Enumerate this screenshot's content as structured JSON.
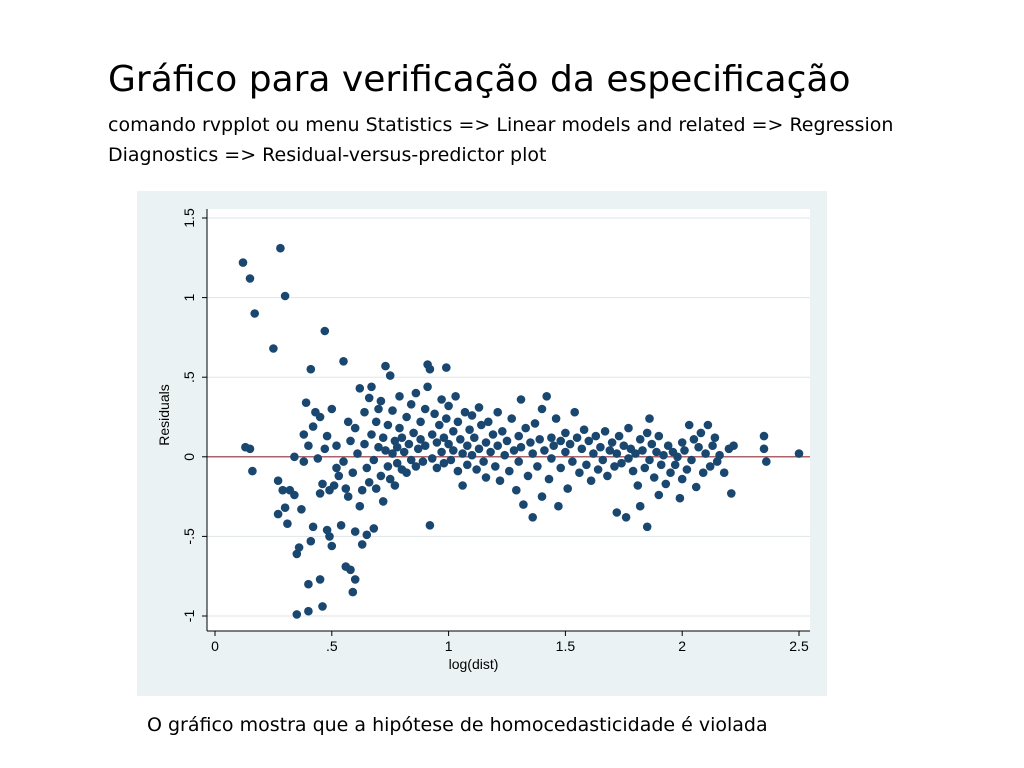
{
  "slide": {
    "title": "Gráfico para verificação da especificação",
    "subtitle_line1": "comando  rvpplot  ou menu Statistics =>  Linear models and related =>  Regression",
    "subtitle_line2": "Diagnostics => Residual-versus-predictor plot",
    "caption": "O gráfico mostra que a hipótese de homocedasticidade é violada"
  },
  "colors": {
    "plot_region_bg": "#eaf2f3",
    "marker": "#1a476f",
    "reference_line": "#90353b",
    "grid": "#dfe6e8"
  },
  "chart_data": {
    "type": "scatter",
    "xlabel": "log(dist)",
    "ylabel": "Residuals",
    "xlim": [
      0,
      2.5
    ],
    "ylim": [
      -1,
      1.5
    ],
    "xticks": [
      0,
      0.5,
      1,
      1.5,
      2,
      2.5
    ],
    "xtick_labels": [
      "0",
      ".5",
      "1",
      "1.5",
      "2",
      "2.5"
    ],
    "yticks": [
      -1,
      -0.5,
      0,
      0.5,
      1,
      1.5
    ],
    "ytick_labels": [
      "-1",
      "-.5",
      "0",
      ".5",
      "1",
      "1.5"
    ],
    "grid": true,
    "reference_line_y": 0,
    "points": [
      [
        0.12,
        1.22
      ],
      [
        0.15,
        1.12
      ],
      [
        0.17,
        0.9
      ],
      [
        0.25,
        0.68
      ],
      [
        0.28,
        1.31
      ],
      [
        0.3,
        1.01
      ],
      [
        0.13,
        0.06
      ],
      [
        0.15,
        0.05
      ],
      [
        0.16,
        -0.09
      ],
      [
        0.27,
        -0.15
      ],
      [
        0.27,
        -0.36
      ],
      [
        0.29,
        -0.21
      ],
      [
        0.3,
        -0.32
      ],
      [
        0.31,
        -0.42
      ],
      [
        0.32,
        -0.21
      ],
      [
        0.34,
        -0.24
      ],
      [
        0.34,
        0.0
      ],
      [
        0.35,
        -0.61
      ],
      [
        0.36,
        -0.57
      ],
      [
        0.37,
        -0.33
      ],
      [
        0.38,
        0.14
      ],
      [
        0.38,
        -0.03
      ],
      [
        0.35,
        -0.99
      ],
      [
        0.39,
        0.34
      ],
      [
        0.4,
        0.07
      ],
      [
        0.4,
        -0.8
      ],
      [
        0.4,
        -0.97
      ],
      [
        0.41,
        0.55
      ],
      [
        0.41,
        -0.53
      ],
      [
        0.42,
        -0.44
      ],
      [
        0.42,
        0.19
      ],
      [
        0.43,
        0.28
      ],
      [
        0.44,
        -0.01
      ],
      [
        0.45,
        -0.23
      ],
      [
        0.45,
        0.25
      ],
      [
        0.45,
        -0.77
      ],
      [
        0.46,
        -0.94
      ],
      [
        0.46,
        -0.17
      ],
      [
        0.47,
        0.79
      ],
      [
        0.47,
        0.05
      ],
      [
        0.48,
        0.13
      ],
      [
        0.48,
        -0.46
      ],
      [
        0.49,
        -0.21
      ],
      [
        0.49,
        -0.5
      ],
      [
        0.5,
        0.3
      ],
      [
        0.5,
        -0.56
      ],
      [
        0.51,
        -0.18
      ],
      [
        0.52,
        0.07
      ],
      [
        0.52,
        -0.07
      ],
      [
        0.53,
        -0.12
      ],
      [
        0.54,
        -0.43
      ],
      [
        0.55,
        0.6
      ],
      [
        0.55,
        -0.03
      ],
      [
        0.56,
        -0.2
      ],
      [
        0.56,
        -0.69
      ],
      [
        0.57,
        0.22
      ],
      [
        0.57,
        -0.25
      ],
      [
        0.58,
        -0.71
      ],
      [
        0.58,
        0.1
      ],
      [
        0.59,
        -0.1
      ],
      [
        0.59,
        -0.85
      ],
      [
        0.6,
        -0.47
      ],
      [
        0.6,
        0.18
      ],
      [
        0.6,
        -0.77
      ],
      [
        0.61,
        0.02
      ],
      [
        0.62,
        0.43
      ],
      [
        0.62,
        -0.31
      ],
      [
        0.63,
        -0.55
      ],
      [
        0.63,
        -0.21
      ],
      [
        0.64,
        0.08
      ],
      [
        0.64,
        0.28
      ],
      [
        0.65,
        -0.49
      ],
      [
        0.65,
        -0.07
      ],
      [
        0.66,
        0.37
      ],
      [
        0.66,
        -0.16
      ],
      [
        0.67,
        0.44
      ],
      [
        0.67,
        0.14
      ],
      [
        0.68,
        -0.45
      ],
      [
        0.68,
        -0.02
      ],
      [
        0.69,
        0.22
      ],
      [
        0.69,
        -0.2
      ],
      [
        0.7,
        0.3
      ],
      [
        0.7,
        0.06
      ],
      [
        0.71,
        -0.12
      ],
      [
        0.71,
        0.35
      ],
      [
        0.72,
        0.12
      ],
      [
        0.72,
        -0.28
      ],
      [
        0.73,
        0.57
      ],
      [
        0.73,
        0.04
      ],
      [
        0.74,
        -0.06
      ],
      [
        0.74,
        0.2
      ],
      [
        0.75,
        0.51
      ],
      [
        0.75,
        -0.14
      ],
      [
        0.76,
        0.02
      ],
      [
        0.76,
        0.29
      ],
      [
        0.77,
        0.1
      ],
      [
        0.77,
        -0.18
      ],
      [
        0.78,
        0.06
      ],
      [
        0.78,
        -0.04
      ],
      [
        0.79,
        0.18
      ],
      [
        0.79,
        0.38
      ],
      [
        0.8,
        -0.08
      ],
      [
        0.8,
        0.12
      ],
      [
        0.81,
        0.03
      ],
      [
        0.82,
        -0.1
      ],
      [
        0.82,
        0.25
      ],
      [
        0.83,
        0.08
      ],
      [
        0.84,
        0.33
      ],
      [
        0.84,
        -0.02
      ],
      [
        0.85,
        0.15
      ],
      [
        0.86,
        0.4
      ],
      [
        0.86,
        -0.06
      ],
      [
        0.87,
        0.05
      ],
      [
        0.88,
        0.22
      ],
      [
        0.88,
        0.11
      ],
      [
        0.89,
        -0.03
      ],
      [
        0.9,
        0.3
      ],
      [
        0.9,
        0.07
      ],
      [
        0.91,
        0.58
      ],
      [
        0.91,
        0.44
      ],
      [
        0.92,
        0.55
      ],
      [
        0.92,
        -0.43
      ],
      [
        0.93,
        0.14
      ],
      [
        0.93,
        -0.01
      ],
      [
        0.94,
        0.27
      ],
      [
        0.95,
        0.09
      ],
      [
        0.95,
        -0.07
      ],
      [
        0.96,
        0.2
      ],
      [
        0.97,
        0.36
      ],
      [
        0.97,
        0.03
      ],
      [
        0.98,
        0.12
      ],
      [
        0.98,
        -0.04
      ],
      [
        0.99,
        0.56
      ],
      [
        0.99,
        0.24
      ],
      [
        1.0,
        0.08
      ],
      [
        1.0,
        0.32
      ],
      [
        1.01,
        -0.02
      ],
      [
        1.02,
        0.16
      ],
      [
        1.02,
        0.04
      ],
      [
        1.03,
        0.38
      ],
      [
        1.04,
        -0.09
      ],
      [
        1.04,
        0.22
      ],
      [
        1.05,
        0.11
      ],
      [
        1.06,
        0.02
      ],
      [
        1.06,
        -0.18
      ],
      [
        1.07,
        0.28
      ],
      [
        1.08,
        0.07
      ],
      [
        1.08,
        -0.05
      ],
      [
        1.09,
        0.17
      ],
      [
        1.1,
        0.26
      ],
      [
        1.1,
        0.01
      ],
      [
        1.11,
        0.12
      ],
      [
        1.12,
        -0.08
      ],
      [
        1.13,
        0.31
      ],
      [
        1.13,
        0.05
      ],
      [
        1.14,
        0.2
      ],
      [
        1.15,
        -0.03
      ],
      [
        1.16,
        0.09
      ],
      [
        1.16,
        -0.13
      ],
      [
        1.17,
        0.22
      ],
      [
        1.18,
        0.03
      ],
      [
        1.19,
        0.14
      ],
      [
        1.2,
        -0.06
      ],
      [
        1.21,
        0.28
      ],
      [
        1.21,
        0.07
      ],
      [
        1.22,
        -0.15
      ],
      [
        1.23,
        0.16
      ],
      [
        1.24,
        0.01
      ],
      [
        1.25,
        0.1
      ],
      [
        1.26,
        -0.09
      ],
      [
        1.27,
        0.24
      ],
      [
        1.28,
        0.04
      ],
      [
        1.29,
        -0.21
      ],
      [
        1.3,
        0.13
      ],
      [
        1.3,
        -0.03
      ],
      [
        1.31,
        0.36
      ],
      [
        1.31,
        0.06
      ],
      [
        1.32,
        -0.3
      ],
      [
        1.33,
        0.18
      ],
      [
        1.34,
        -0.12
      ],
      [
        1.35,
        0.09
      ],
      [
        1.36,
        -0.38
      ],
      [
        1.36,
        0.02
      ],
      [
        1.37,
        0.21
      ],
      [
        1.38,
        -0.06
      ],
      [
        1.39,
        0.11
      ],
      [
        1.4,
        -0.25
      ],
      [
        1.4,
        0.3
      ],
      [
        1.41,
        0.04
      ],
      [
        1.42,
        0.38
      ],
      [
        1.43,
        -0.14
      ],
      [
        1.44,
        0.12
      ],
      [
        1.44,
        -0.01
      ],
      [
        1.45,
        0.07
      ],
      [
        1.46,
        0.24
      ],
      [
        1.47,
        -0.31
      ],
      [
        1.48,
        0.1
      ],
      [
        1.48,
        -0.07
      ],
      [
        1.5,
        0.03
      ],
      [
        1.5,
        0.15
      ],
      [
        1.51,
        -0.2
      ],
      [
        1.52,
        0.08
      ],
      [
        1.53,
        -0.03
      ],
      [
        1.54,
        0.28
      ],
      [
        1.55,
        0.12
      ],
      [
        1.56,
        -0.1
      ],
      [
        1.57,
        0.05
      ],
      [
        1.58,
        0.17
      ],
      [
        1.59,
        -0.05
      ],
      [
        1.6,
        0.1
      ],
      [
        1.61,
        -0.15
      ],
      [
        1.62,
        0.02
      ],
      [
        1.63,
        0.13
      ],
      [
        1.64,
        -0.08
      ],
      [
        1.65,
        0.06
      ],
      [
        1.66,
        -0.02
      ],
      [
        1.67,
        0.16
      ],
      [
        1.68,
        -0.12
      ],
      [
        1.69,
        0.04
      ],
      [
        1.7,
        0.09
      ],
      [
        1.71,
        -0.06
      ],
      [
        1.72,
        0.02
      ],
      [
        1.72,
        -0.35
      ],
      [
        1.73,
        0.13
      ],
      [
        1.74,
        -0.04
      ],
      [
        1.75,
        0.07
      ],
      [
        1.76,
        -0.38
      ],
      [
        1.77,
        -0.01
      ],
      [
        1.77,
        0.18
      ],
      [
        1.78,
        0.05
      ],
      [
        1.79,
        -0.09
      ],
      [
        1.8,
        0.02
      ],
      [
        1.81,
        -0.18
      ],
      [
        1.82,
        0.11
      ],
      [
        1.82,
        -0.31
      ],
      [
        1.83,
        0.04
      ],
      [
        1.84,
        -0.07
      ],
      [
        1.85,
        0.15
      ],
      [
        1.85,
        -0.44
      ],
      [
        1.86,
        0.24
      ],
      [
        1.86,
        -0.02
      ],
      [
        1.87,
        0.08
      ],
      [
        1.88,
        -0.13
      ],
      [
        1.89,
        0.03
      ],
      [
        1.9,
        -0.24
      ],
      [
        1.9,
        0.13
      ],
      [
        1.91,
        -0.05
      ],
      [
        1.92,
        0.01
      ],
      [
        1.93,
        -0.17
      ],
      [
        1.94,
        0.07
      ],
      [
        1.95,
        -0.1
      ],
      [
        1.96,
        0.03
      ],
      [
        1.97,
        -0.05
      ],
      [
        1.98,
        0.0
      ],
      [
        1.99,
        -0.26
      ],
      [
        2.0,
        0.09
      ],
      [
        2.0,
        -0.14
      ],
      [
        2.01,
        0.04
      ],
      [
        2.02,
        -0.08
      ],
      [
        2.03,
        0.2
      ],
      [
        2.04,
        -0.02
      ],
      [
        2.05,
        0.11
      ],
      [
        2.06,
        -0.19
      ],
      [
        2.07,
        0.06
      ],
      [
        2.08,
        0.15
      ],
      [
        2.09,
        -0.1
      ],
      [
        2.1,
        0.02
      ],
      [
        2.11,
        0.2
      ],
      [
        2.12,
        -0.06
      ],
      [
        2.13,
        0.07
      ],
      [
        2.14,
        0.12
      ],
      [
        2.15,
        -0.03
      ],
      [
        2.16,
        0.01
      ],
      [
        2.18,
        -0.1
      ],
      [
        2.2,
        0.05
      ],
      [
        2.21,
        -0.23
      ],
      [
        2.22,
        0.07
      ],
      [
        2.35,
        0.13
      ],
      [
        2.35,
        0.05
      ],
      [
        2.36,
        -0.03
      ],
      [
        2.5,
        0.02
      ]
    ]
  }
}
